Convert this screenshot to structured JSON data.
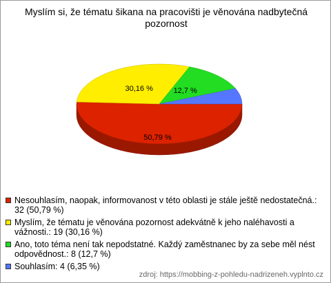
{
  "chart_data": {
    "type": "pie3d",
    "title": "Myslím si, že tématu šikana na pracovišti je věnována nadbytečná pozornost",
    "categories": [
      "Nesouhlasím, naopak, informovanost v této oblasti je stále ještě nedostatečná.: 32 (50,79 %)",
      "Myslím, že tématu je věnována pozornost adekvátně k jeho naléhavosti a vážnosti.: 19 (30,16 %)",
      "Ano, toto téma není tak nepodstatné. Každý zaměstnanec by za sebe měl nést odpovědnost.: 8 (12,7 %)",
      "Souhlasím: 4 (6,35 %)"
    ],
    "values": [
      50.79,
      30.16,
      12.7,
      6.35
    ],
    "value_labels": [
      "50,79 %",
      "30,16 %",
      "12,7 %",
      null
    ],
    "colors": [
      "#dd2200",
      "#ffee00",
      "#22dd22",
      "#5577ff"
    ],
    "source": "zdroj: https://mobbing-z-pohledu-nadrizeneh.vyplnto.cz"
  }
}
